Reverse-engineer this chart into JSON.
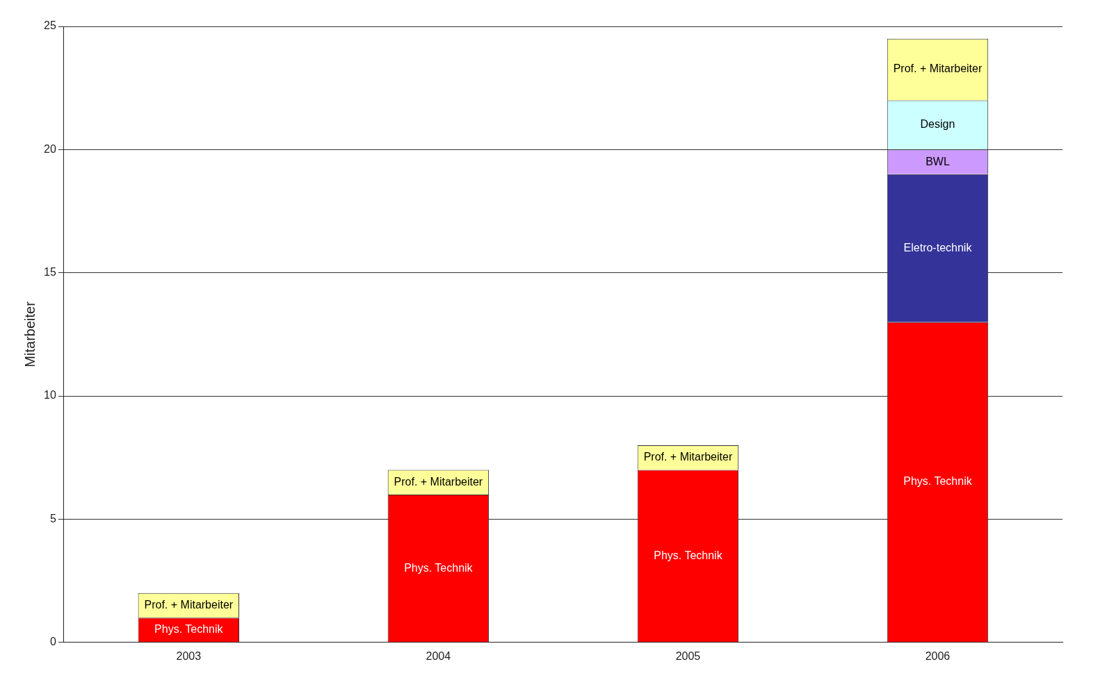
{
  "chart_data": {
    "type": "bar",
    "stacked": true,
    "ylabel": "Mitarbeiter",
    "categories": [
      "2003",
      "2004",
      "2005",
      "2006"
    ],
    "ylim": [
      0,
      25
    ],
    "yticks": [
      0,
      5,
      10,
      15,
      20,
      25
    ],
    "grid": "y",
    "legend": false,
    "series": [
      {
        "name": "Phys. Technik",
        "color": "#ff0000",
        "values": [
          1,
          6,
          7,
          13
        ]
      },
      {
        "name": "Eletro-technik",
        "color": "#333399",
        "values": [
          null,
          null,
          null,
          6
        ]
      },
      {
        "name": "BWL",
        "color": "#cc99ff",
        "values": [
          null,
          null,
          null,
          1
        ]
      },
      {
        "name": "Design",
        "color": "#ccffff",
        "values": [
          null,
          null,
          null,
          2
        ]
      },
      {
        "name": "Prof. + Mitarbeiter",
        "color": "#ffff99",
        "values": [
          1,
          1,
          1,
          2.5
        ]
      }
    ]
  }
}
